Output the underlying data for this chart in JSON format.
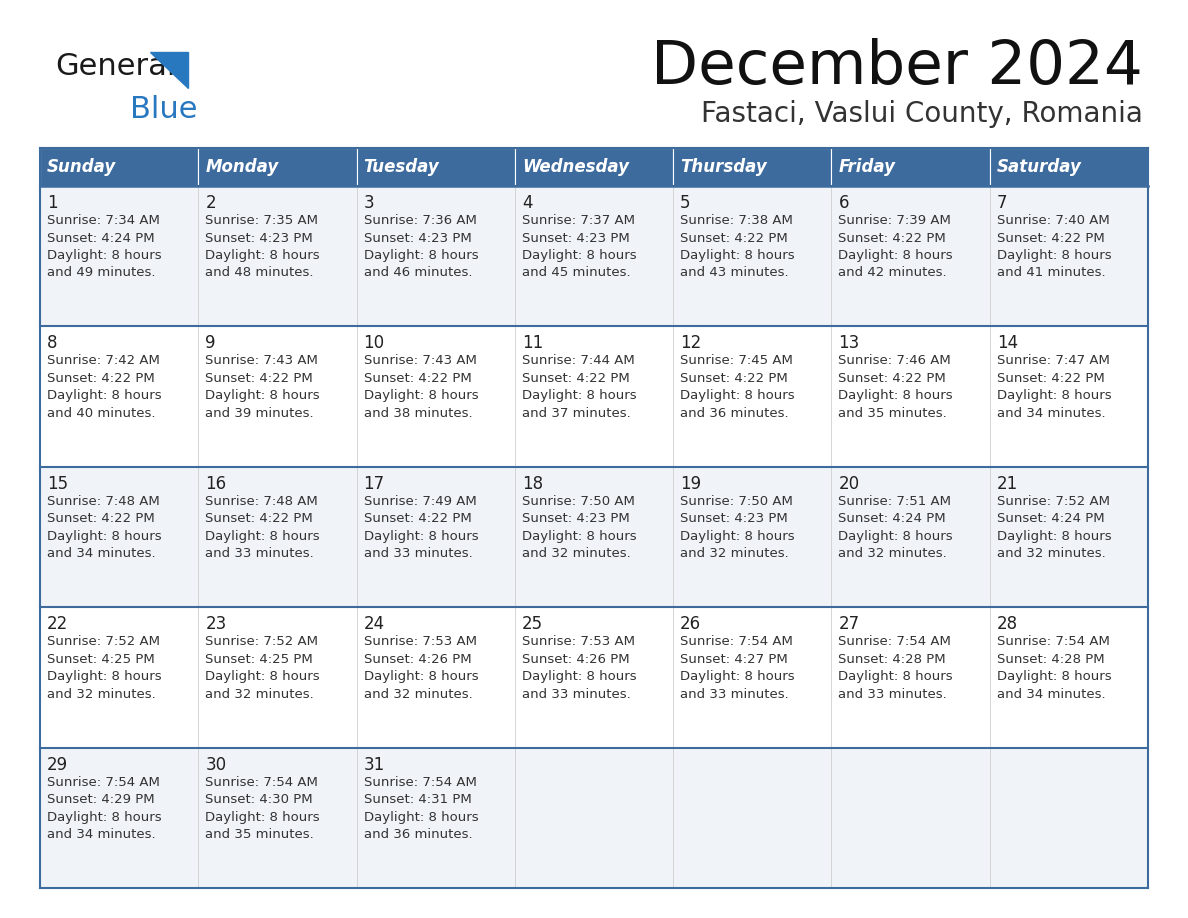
{
  "title": "December 2024",
  "subtitle": "Fastaci, Vaslui County, Romania",
  "header_color": "#3d6b9e",
  "header_text_color": "#ffffff",
  "cell_bg_even": "#f0f4f8",
  "cell_bg_odd": "#ffffff",
  "border_color": "#3d6b9e",
  "text_color": "#333333",
  "day_headers": [
    "Sunday",
    "Monday",
    "Tuesday",
    "Wednesday",
    "Thursday",
    "Friday",
    "Saturday"
  ],
  "days": [
    {
      "date": 1,
      "col": 0,
      "row": 0,
      "sunrise": "7:34 AM",
      "sunset": "4:24 PM",
      "daylight_hrs": 8,
      "daylight_min": "49 minutes."
    },
    {
      "date": 2,
      "col": 1,
      "row": 0,
      "sunrise": "7:35 AM",
      "sunset": "4:23 PM",
      "daylight_hrs": 8,
      "daylight_min": "48 minutes."
    },
    {
      "date": 3,
      "col": 2,
      "row": 0,
      "sunrise": "7:36 AM",
      "sunset": "4:23 PM",
      "daylight_hrs": 8,
      "daylight_min": "46 minutes."
    },
    {
      "date": 4,
      "col": 3,
      "row": 0,
      "sunrise": "7:37 AM",
      "sunset": "4:23 PM",
      "daylight_hrs": 8,
      "daylight_min": "45 minutes."
    },
    {
      "date": 5,
      "col": 4,
      "row": 0,
      "sunrise": "7:38 AM",
      "sunset": "4:22 PM",
      "daylight_hrs": 8,
      "daylight_min": "43 minutes."
    },
    {
      "date": 6,
      "col": 5,
      "row": 0,
      "sunrise": "7:39 AM",
      "sunset": "4:22 PM",
      "daylight_hrs": 8,
      "daylight_min": "42 minutes."
    },
    {
      "date": 7,
      "col": 6,
      "row": 0,
      "sunrise": "7:40 AM",
      "sunset": "4:22 PM",
      "daylight_hrs": 8,
      "daylight_min": "41 minutes."
    },
    {
      "date": 8,
      "col": 0,
      "row": 1,
      "sunrise": "7:42 AM",
      "sunset": "4:22 PM",
      "daylight_hrs": 8,
      "daylight_min": "40 minutes."
    },
    {
      "date": 9,
      "col": 1,
      "row": 1,
      "sunrise": "7:43 AM",
      "sunset": "4:22 PM",
      "daylight_hrs": 8,
      "daylight_min": "39 minutes."
    },
    {
      "date": 10,
      "col": 2,
      "row": 1,
      "sunrise": "7:43 AM",
      "sunset": "4:22 PM",
      "daylight_hrs": 8,
      "daylight_min": "38 minutes."
    },
    {
      "date": 11,
      "col": 3,
      "row": 1,
      "sunrise": "7:44 AM",
      "sunset": "4:22 PM",
      "daylight_hrs": 8,
      "daylight_min": "37 minutes."
    },
    {
      "date": 12,
      "col": 4,
      "row": 1,
      "sunrise": "7:45 AM",
      "sunset": "4:22 PM",
      "daylight_hrs": 8,
      "daylight_min": "36 minutes."
    },
    {
      "date": 13,
      "col": 5,
      "row": 1,
      "sunrise": "7:46 AM",
      "sunset": "4:22 PM",
      "daylight_hrs": 8,
      "daylight_min": "35 minutes."
    },
    {
      "date": 14,
      "col": 6,
      "row": 1,
      "sunrise": "7:47 AM",
      "sunset": "4:22 PM",
      "daylight_hrs": 8,
      "daylight_min": "34 minutes."
    },
    {
      "date": 15,
      "col": 0,
      "row": 2,
      "sunrise": "7:48 AM",
      "sunset": "4:22 PM",
      "daylight_hrs": 8,
      "daylight_min": "34 minutes."
    },
    {
      "date": 16,
      "col": 1,
      "row": 2,
      "sunrise": "7:48 AM",
      "sunset": "4:22 PM",
      "daylight_hrs": 8,
      "daylight_min": "33 minutes."
    },
    {
      "date": 17,
      "col": 2,
      "row": 2,
      "sunrise": "7:49 AM",
      "sunset": "4:22 PM",
      "daylight_hrs": 8,
      "daylight_min": "33 minutes."
    },
    {
      "date": 18,
      "col": 3,
      "row": 2,
      "sunrise": "7:50 AM",
      "sunset": "4:23 PM",
      "daylight_hrs": 8,
      "daylight_min": "32 minutes."
    },
    {
      "date": 19,
      "col": 4,
      "row": 2,
      "sunrise": "7:50 AM",
      "sunset": "4:23 PM",
      "daylight_hrs": 8,
      "daylight_min": "32 minutes."
    },
    {
      "date": 20,
      "col": 5,
      "row": 2,
      "sunrise": "7:51 AM",
      "sunset": "4:24 PM",
      "daylight_hrs": 8,
      "daylight_min": "32 minutes."
    },
    {
      "date": 21,
      "col": 6,
      "row": 2,
      "sunrise": "7:52 AM",
      "sunset": "4:24 PM",
      "daylight_hrs": 8,
      "daylight_min": "32 minutes."
    },
    {
      "date": 22,
      "col": 0,
      "row": 3,
      "sunrise": "7:52 AM",
      "sunset": "4:25 PM",
      "daylight_hrs": 8,
      "daylight_min": "32 minutes."
    },
    {
      "date": 23,
      "col": 1,
      "row": 3,
      "sunrise": "7:52 AM",
      "sunset": "4:25 PM",
      "daylight_hrs": 8,
      "daylight_min": "32 minutes."
    },
    {
      "date": 24,
      "col": 2,
      "row": 3,
      "sunrise": "7:53 AM",
      "sunset": "4:26 PM",
      "daylight_hrs": 8,
      "daylight_min": "32 minutes."
    },
    {
      "date": 25,
      "col": 3,
      "row": 3,
      "sunrise": "7:53 AM",
      "sunset": "4:26 PM",
      "daylight_hrs": 8,
      "daylight_min": "33 minutes."
    },
    {
      "date": 26,
      "col": 4,
      "row": 3,
      "sunrise": "7:54 AM",
      "sunset": "4:27 PM",
      "daylight_hrs": 8,
      "daylight_min": "33 minutes."
    },
    {
      "date": 27,
      "col": 5,
      "row": 3,
      "sunrise": "7:54 AM",
      "sunset": "4:28 PM",
      "daylight_hrs": 8,
      "daylight_min": "33 minutes."
    },
    {
      "date": 28,
      "col": 6,
      "row": 3,
      "sunrise": "7:54 AM",
      "sunset": "4:28 PM",
      "daylight_hrs": 8,
      "daylight_min": "34 minutes."
    },
    {
      "date": 29,
      "col": 0,
      "row": 4,
      "sunrise": "7:54 AM",
      "sunset": "4:29 PM",
      "daylight_hrs": 8,
      "daylight_min": "34 minutes."
    },
    {
      "date": 30,
      "col": 1,
      "row": 4,
      "sunrise": "7:54 AM",
      "sunset": "4:30 PM",
      "daylight_hrs": 8,
      "daylight_min": "35 minutes."
    },
    {
      "date": 31,
      "col": 2,
      "row": 4,
      "sunrise": "7:54 AM",
      "sunset": "4:31 PM",
      "daylight_hrs": 8,
      "daylight_min": "36 minutes."
    }
  ],
  "num_rows": 5,
  "logo_general_color": "#1a1a1a",
  "logo_blue_color": "#2878c0",
  "logo_triangle_color": "#2878c0"
}
